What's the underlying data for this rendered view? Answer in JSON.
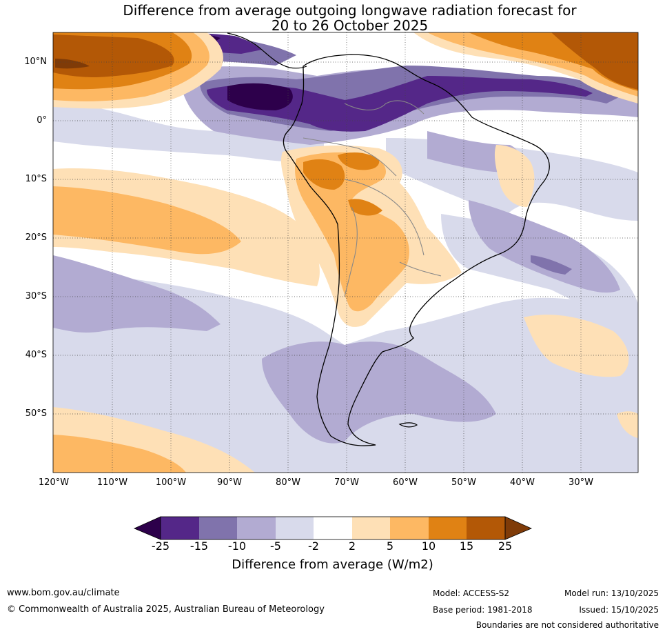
{
  "title_line1": "Difference from average outgoing longwave radiation forecast for",
  "title_line2": "20 to 26 October 2025",
  "lat_labels": [
    "10°N",
    "0°",
    "10°S",
    "20°S",
    "30°S",
    "40°S",
    "50°S"
  ],
  "lon_labels": [
    "120°W",
    "110°W",
    "100°W",
    "90°W",
    "80°W",
    "70°W",
    "60°W",
    "50°W",
    "40°W",
    "30°W"
  ],
  "colorbar": {
    "ticks": [
      "-25",
      "-15",
      "-10",
      "-5",
      "-2",
      "2",
      "5",
      "10",
      "15",
      "25"
    ],
    "colors": [
      "#2d004b",
      "#542788",
      "#8073ac",
      "#b2abd2",
      "#d8daeb",
      "#ffffff",
      "#fee0b6",
      "#fdb863",
      "#e08214",
      "#b35806",
      "#7f3b08"
    ],
    "title": "Difference from average (W/m2)"
  },
  "footer": {
    "website": "www.bom.gov.au/climate",
    "copyright": "© Commonwealth of Australia 2025, Australian Bureau of Meteorology",
    "model": "Model: ACCESS-S2",
    "base_period": "Base period: 1981-2018",
    "model_run": "Model run: 13/10/2025",
    "issued": "Issued: 15/10/2025",
    "disclaimer": "Boundaries are not considered authoritative"
  }
}
